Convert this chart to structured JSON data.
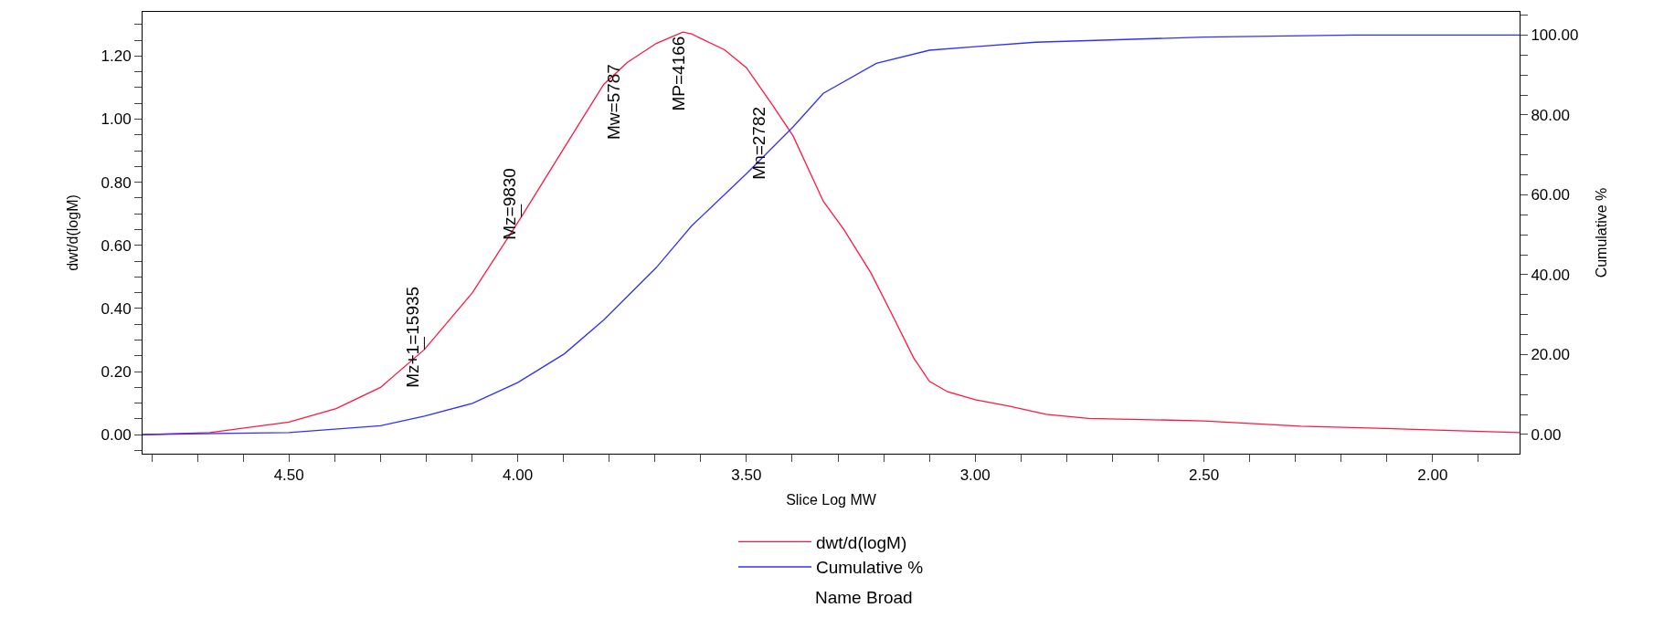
{
  "chart_data": {
    "type": "line",
    "xlabel": "Slice Log MW",
    "ylabel": "dwt/d(logM)",
    "y2label": "Cumulative %",
    "xlim": [
      4.82,
      1.81
    ],
    "ylim": [
      -0.06,
      1.34
    ],
    "y2lim": [
      -4.8,
      105.8
    ],
    "xticks": [
      {
        "value": 4.8,
        "label": null
      },
      {
        "value": 4.7,
        "label": null
      },
      {
        "value": 4.6,
        "label": null
      },
      {
        "value": 4.5,
        "label": "4.50"
      },
      {
        "value": 4.4,
        "label": null
      },
      {
        "value": 4.3,
        "label": null
      },
      {
        "value": 4.2,
        "label": null
      },
      {
        "value": 4.1,
        "label": null
      },
      {
        "value": 4.0,
        "label": "4.00"
      },
      {
        "value": 3.9,
        "label": null
      },
      {
        "value": 3.8,
        "label": null
      },
      {
        "value": 3.7,
        "label": null
      },
      {
        "value": 3.6,
        "label": null
      },
      {
        "value": 3.5,
        "label": "3.50"
      },
      {
        "value": 3.4,
        "label": null
      },
      {
        "value": 3.3,
        "label": null
      },
      {
        "value": 3.2,
        "label": null
      },
      {
        "value": 3.1,
        "label": null
      },
      {
        "value": 3.0,
        "label": "3.00"
      },
      {
        "value": 2.9,
        "label": null
      },
      {
        "value": 2.8,
        "label": null
      },
      {
        "value": 2.7,
        "label": null
      },
      {
        "value": 2.6,
        "label": null
      },
      {
        "value": 2.5,
        "label": "2.50"
      },
      {
        "value": 2.4,
        "label": null
      },
      {
        "value": 2.3,
        "label": null
      },
      {
        "value": 2.2,
        "label": null
      },
      {
        "value": 2.1,
        "label": null
      },
      {
        "value": 2.0,
        "label": "2.00"
      },
      {
        "value": 1.9,
        "label": null
      }
    ],
    "yticks": [
      {
        "value": -0.05,
        "label": null
      },
      {
        "value": 0,
        "label": "0.00"
      },
      {
        "value": 0.05,
        "label": null
      },
      {
        "value": 0.1,
        "label": null
      },
      {
        "value": 0.15,
        "label": null
      },
      {
        "value": 0.2,
        "label": "0.20"
      },
      {
        "value": 0.25,
        "label": null
      },
      {
        "value": 0.3,
        "label": null
      },
      {
        "value": 0.35,
        "label": null
      },
      {
        "value": 0.4,
        "label": "0.40"
      },
      {
        "value": 0.45,
        "label": null
      },
      {
        "value": 0.5,
        "label": null
      },
      {
        "value": 0.55,
        "label": null
      },
      {
        "value": 0.6,
        "label": "0.60"
      },
      {
        "value": 0.65,
        "label": null
      },
      {
        "value": 0.7,
        "label": null
      },
      {
        "value": 0.75,
        "label": null
      },
      {
        "value": 0.8,
        "label": "0.80"
      },
      {
        "value": 0.85,
        "label": null
      },
      {
        "value": 0.9,
        "label": null
      },
      {
        "value": 0.95,
        "label": null
      },
      {
        "value": 1.0,
        "label": "1.00"
      },
      {
        "value": 1.05,
        "label": null
      },
      {
        "value": 1.1,
        "label": null
      },
      {
        "value": 1.15,
        "label": null
      },
      {
        "value": 1.2,
        "label": "1.20"
      },
      {
        "value": 1.25,
        "label": null
      },
      {
        "value": 1.3,
        "label": null
      }
    ],
    "y2ticks": [
      {
        "value": 0,
        "label": "0.00"
      },
      {
        "value": 5,
        "label": null
      },
      {
        "value": 10,
        "label": null
      },
      {
        "value": 15,
        "label": null
      },
      {
        "value": 20,
        "label": "20.00"
      },
      {
        "value": 25,
        "label": null
      },
      {
        "value": 30,
        "label": null
      },
      {
        "value": 35,
        "label": null
      },
      {
        "value": 40,
        "label": "40.00"
      },
      {
        "value": 45,
        "label": null
      },
      {
        "value": 50,
        "label": null
      },
      {
        "value": 55,
        "label": null
      },
      {
        "value": 60,
        "label": "60.00"
      },
      {
        "value": 65,
        "label": null
      },
      {
        "value": 70,
        "label": null
      },
      {
        "value": 75,
        "label": null
      },
      {
        "value": 80,
        "label": "80.00"
      },
      {
        "value": 85,
        "label": null
      },
      {
        "value": 90,
        "label": null
      },
      {
        "value": 95,
        "label": null
      },
      {
        "value": 100,
        "label": "100.00"
      },
      {
        "value": 105,
        "label": null
      }
    ],
    "legend": "bottom",
    "marker": "none",
    "line_style": "solid",
    "series": [
      {
        "name": "dwt/d(logM)",
        "color": "#ff1744",
        "x": [
          4.82,
          4.673,
          4.5,
          4.397,
          4.3,
          4.204,
          4.099,
          3.992,
          3.898,
          3.812,
          3.76,
          3.697,
          3.639,
          3.62,
          3.548,
          3.5,
          3.444,
          3.398,
          3.332,
          3.286,
          3.228,
          3.181,
          3.135,
          3.1,
          3.06,
          3.0,
          2.926,
          2.845,
          2.752,
          2.5,
          2.289,
          2.057,
          1.81
        ],
        "values": [
          0.0,
          0.007,
          0.04,
          0.083,
          0.15,
          0.27,
          0.45,
          0.69,
          0.91,
          1.11,
          1.18,
          1.24,
          1.276,
          1.27,
          1.22,
          1.163,
          1.047,
          0.947,
          0.74,
          0.648,
          0.513,
          0.379,
          0.245,
          0.169,
          0.136,
          0.111,
          0.091,
          0.065,
          0.052,
          0.044,
          0.027,
          0.018,
          0.007
        ]
      },
      {
        "name": "Cumulative %",
        "color": "#3030ff",
        "axis": "y2",
        "x": [
          4.82,
          4.5,
          4.3,
          4.204,
          4.099,
          4.0,
          3.898,
          3.812,
          3.697,
          3.62,
          3.5,
          3.398,
          3.332,
          3.216,
          3.1,
          3.0,
          2.868,
          2.5,
          2.173,
          1.81
        ],
        "values": [
          0.0,
          0.5,
          2.2,
          4.6,
          7.8,
          13.0,
          20.2,
          28.7,
          41.8,
          52.2,
          65.3,
          77.0,
          85.4,
          92.9,
          96.2,
          97.1,
          98.2,
          99.5,
          100.0,
          100.0
        ]
      }
    ],
    "annotations": [
      {
        "text": "Mz+1=15935",
        "x": 4.204,
        "y": 0.27
      },
      {
        "text": "Mz=9830",
        "x": 3.992,
        "y": 0.69
      },
      {
        "text": "Mw=5787",
        "x": 3.76,
        "y": 1.18
      },
      {
        "text": "MP=4166",
        "x": 3.62,
        "y": 1.27
      },
      {
        "text": "Mn=2782",
        "x": 3.444,
        "y": 1.047
      },
      "Name Broad"
    ]
  }
}
